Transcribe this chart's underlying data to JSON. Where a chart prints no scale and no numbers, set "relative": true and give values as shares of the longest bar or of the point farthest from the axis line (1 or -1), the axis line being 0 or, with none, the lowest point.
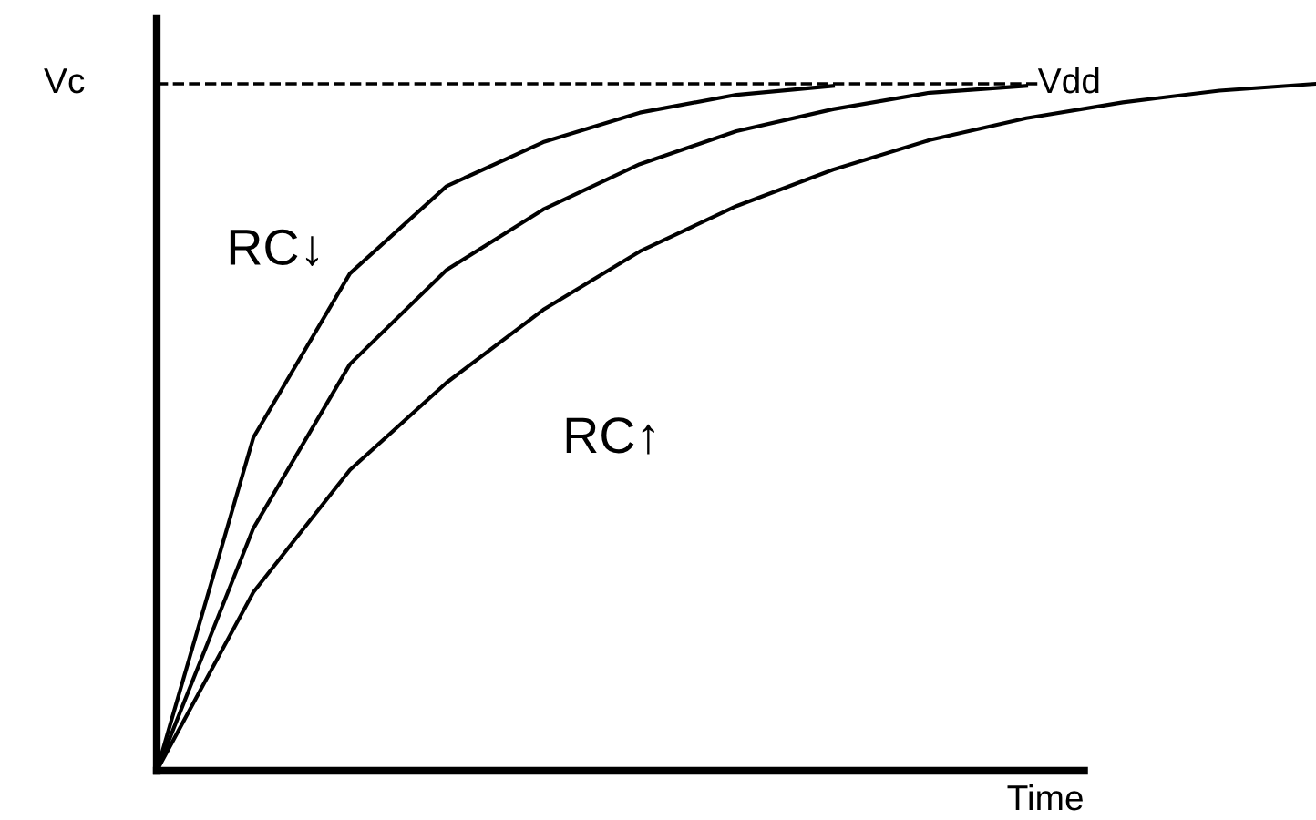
{
  "chart_data": {
    "type": "line",
    "relative": true,
    "xlabel": "Time",
    "ylabel": "Vc",
    "categories": [
      null,
      null,
      null,
      null,
      null,
      null,
      null,
      null,
      null,
      null,
      null,
      null,
      null
    ],
    "series": [
      {
        "color": "#000000",
        "values": [
          0,
          0.485,
          0.724,
          0.851,
          0.915,
          0.958,
          0.984,
          0.997,
          null,
          null,
          null,
          null,
          null
        ]
      },
      {
        "color": "#000000",
        "values": [
          0,
          0.353,
          0.592,
          0.729,
          0.817,
          0.883,
          0.931,
          0.963,
          0.987,
          0.997,
          null,
          null,
          null
        ]
      },
      {
        "color": "#000000",
        "values": [
          0,
          0.26,
          0.438,
          0.565,
          0.671,
          0.756,
          0.822,
          0.875,
          0.918,
          0.95,
          0.973,
          0.99,
          1
        ]
      }
    ],
    "ref_lines": [
      {
        "axis": "y",
        "value": 1,
        "label": "Vdd",
        "color": "#000000",
        "line_style": "dashed"
      }
    ],
    "annotations": [
      "RC↓",
      "RC↑"
    ],
    "grid": false,
    "legend": false,
    "marker": "none",
    "line_style": "solid"
  }
}
